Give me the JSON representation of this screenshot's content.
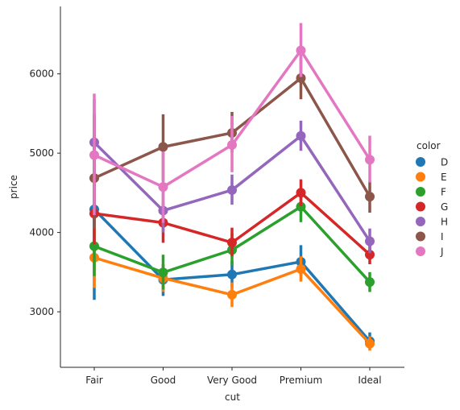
{
  "chart_data": {
    "type": "line",
    "title": "",
    "xlabel": "cut",
    "ylabel": "price",
    "categories": [
      "Fair",
      "Good",
      "Very Good",
      "Premium",
      "Ideal"
    ],
    "ylim": [
      2300,
      6850
    ],
    "yticks": [
      3000,
      4000,
      5000,
      6000
    ],
    "grid": false,
    "legend": {
      "title": "color",
      "placement": "right"
    },
    "series": [
      {
        "name": "D",
        "color": "#1f77b4",
        "values": [
          4291,
          3405,
          3470,
          3631,
          2629
        ],
        "ci_low": [
          3150,
          3200,
          3300,
          3450,
          2540
        ],
        "ci_high": [
          5500,
          3600,
          3640,
          3840,
          2740
        ]
      },
      {
        "name": "E",
        "color": "#ff7f0e",
        "values": [
          3682,
          3424,
          3215,
          3539,
          2598
        ],
        "ci_low": [
          3300,
          3250,
          3060,
          3380,
          2510
        ],
        "ci_high": [
          4080,
          3600,
          3370,
          3700,
          2690
        ]
      },
      {
        "name": "F",
        "color": "#2ca02c",
        "values": [
          3827,
          3496,
          3779,
          4325,
          3375
        ],
        "ci_low": [
          3450,
          3280,
          3580,
          4130,
          3250
        ],
        "ci_high": [
          4220,
          3720,
          3990,
          4520,
          3500
        ]
      },
      {
        "name": "G",
        "color": "#d62728",
        "values": [
          4239,
          4123,
          3873,
          4501,
          3721
        ],
        "ci_low": [
          3850,
          3870,
          3700,
          4330,
          3600
        ],
        "ci_high": [
          4620,
          4380,
          4060,
          4670,
          3840
        ]
      },
      {
        "name": "H",
        "color": "#9467bd",
        "values": [
          5136,
          4276,
          4535,
          5217,
          3889
        ],
        "ci_low": [
          4600,
          4000,
          4350,
          5030,
          3740
        ],
        "ci_high": [
          5680,
          4560,
          4730,
          5410,
          4050
        ]
      },
      {
        "name": "I",
        "color": "#8c564b",
        "values": [
          4685,
          5079,
          5256,
          5946,
          4452
        ],
        "ci_low": [
          4050,
          4650,
          5010,
          5680,
          4250
        ],
        "ci_high": [
          5460,
          5490,
          5520,
          6230,
          4640
        ]
      },
      {
        "name": "J",
        "color": "#e377c2",
        "values": [
          4976,
          4574,
          5104,
          6295,
          4918
        ],
        "ci_low": [
          4220,
          4120,
          4760,
          5960,
          4630
        ],
        "ci_high": [
          5750,
          5020,
          5470,
          6640,
          5220
        ]
      }
    ]
  }
}
